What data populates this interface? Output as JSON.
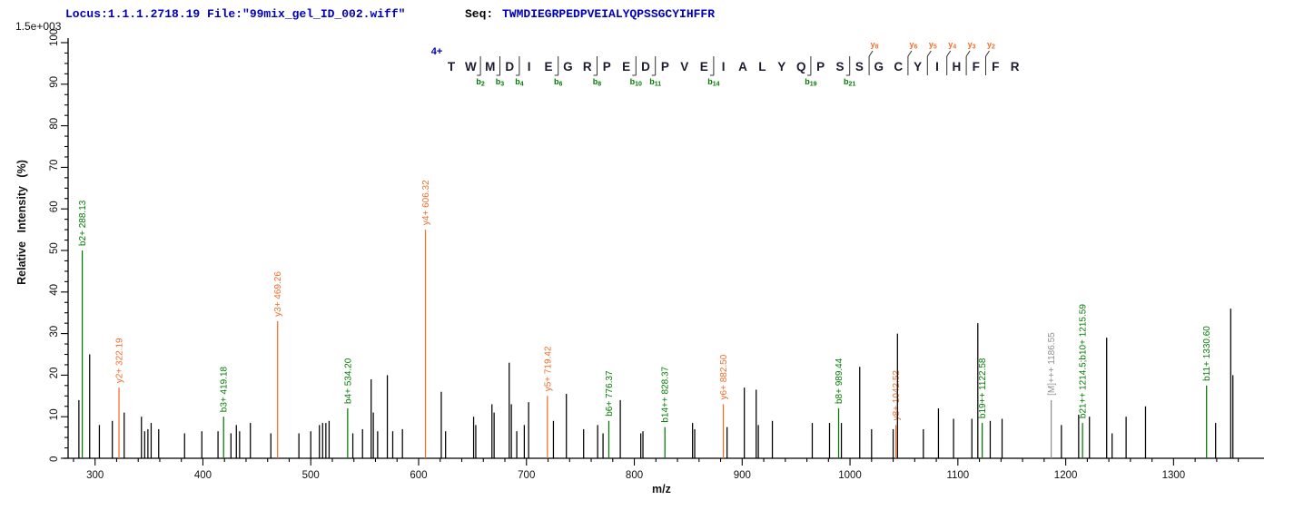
{
  "header": {
    "locus_file": "Locus:1.1.1.2718.19 File:\"99mix_gel_ID_002.wiff\"",
    "seq_label": "Seq:",
    "sequence": "TWMDIEGRPEDPVEIALYQPSSGCYIHFFR"
  },
  "scale_note": "1.5e+003",
  "annotation": {
    "charge": "4+",
    "residues": "TWMDIEGRPEDPVEIALYQPSSGCYIHFFR",
    "b_ions": [
      2,
      3,
      4,
      6,
      8,
      10,
      11,
      14,
      19,
      21
    ],
    "y_ions": [
      8,
      6,
      5,
      4,
      3,
      2
    ]
  },
  "colors": {
    "b_ion": "#007a00",
    "y_ion": "#f26c2a",
    "precursor": "#8f8f8f",
    "peak": "#000000",
    "axis": "#000000",
    "header_blue": "#0000bb",
    "residue_text": "#1c1c30"
  },
  "chart_data": {
    "type": "bar",
    "title": "MS/MS fragment ion spectrum",
    "xlabel": "m/z",
    "ylabel": "Relative Intensity (%)",
    "xlim": [
      275,
      1378
    ],
    "ylim": [
      0,
      100
    ],
    "x_major_tick_step": 100,
    "x_minor_tick_step": 20,
    "x_first_major": 300,
    "x_last_major": 1300,
    "y_major_tick_step": 10,
    "y_minor_tick_step": 2.5,
    "grid": "off",
    "legend": "none",
    "peaks": [
      {
        "mz": 285,
        "pct": 14
      },
      {
        "mz": 288.13,
        "pct": 50,
        "ion": "b",
        "label": "b2+ 288.13"
      },
      {
        "mz": 295,
        "pct": 25
      },
      {
        "mz": 304,
        "pct": 8
      },
      {
        "mz": 316,
        "pct": 9
      },
      {
        "mz": 322.19,
        "pct": 17,
        "ion": "y",
        "label": "y2+ 322.19"
      },
      {
        "mz": 327,
        "pct": 11
      },
      {
        "mz": 343,
        "pct": 10
      },
      {
        "mz": 346,
        "pct": 6.5
      },
      {
        "mz": 349,
        "pct": 7
      },
      {
        "mz": 352,
        "pct": 8.5
      },
      {
        "mz": 359,
        "pct": 7
      },
      {
        "mz": 383,
        "pct": 6
      },
      {
        "mz": 399,
        "pct": 6.5
      },
      {
        "mz": 414,
        "pct": 6.5
      },
      {
        "mz": 419.18,
        "pct": 10,
        "ion": "b",
        "label": "b3+ 419.18"
      },
      {
        "mz": 426,
        "pct": 6
      },
      {
        "mz": 431,
        "pct": 8
      },
      {
        "mz": 434,
        "pct": 6.5
      },
      {
        "mz": 444,
        "pct": 8.5
      },
      {
        "mz": 463,
        "pct": 6
      },
      {
        "mz": 469.26,
        "pct": 33,
        "ion": "y",
        "label": "y3+ 469.26"
      },
      {
        "mz": 489,
        "pct": 6
      },
      {
        "mz": 500,
        "pct": 6.5
      },
      {
        "mz": 508,
        "pct": 8
      },
      {
        "mz": 511,
        "pct": 8.5
      },
      {
        "mz": 514,
        "pct": 8.5
      },
      {
        "mz": 517,
        "pct": 9
      },
      {
        "mz": 534.2,
        "pct": 12,
        "ion": "b",
        "label": "b4+ 534.20"
      },
      {
        "mz": 539,
        "pct": 6
      },
      {
        "mz": 548,
        "pct": 7
      },
      {
        "mz": 556,
        "pct": 19
      },
      {
        "mz": 558,
        "pct": 11
      },
      {
        "mz": 562,
        "pct": 6.5
      },
      {
        "mz": 571,
        "pct": 20
      },
      {
        "mz": 576,
        "pct": 6.5
      },
      {
        "mz": 585,
        "pct": 7
      },
      {
        "mz": 606.32,
        "pct": 55,
        "ion": "y",
        "label": "y4+ 606.32"
      },
      {
        "mz": 621,
        "pct": 16
      },
      {
        "mz": 625,
        "pct": 6.5
      },
      {
        "mz": 651,
        "pct": 10
      },
      {
        "mz": 653,
        "pct": 8
      },
      {
        "mz": 668,
        "pct": 13
      },
      {
        "mz": 670,
        "pct": 11
      },
      {
        "mz": 684,
        "pct": 23
      },
      {
        "mz": 686,
        "pct": 13
      },
      {
        "mz": 691,
        "pct": 6.5
      },
      {
        "mz": 698,
        "pct": 8
      },
      {
        "mz": 702,
        "pct": 13.5
      },
      {
        "mz": 719.42,
        "pct": 15,
        "ion": "y",
        "label": "y5+ 719.42"
      },
      {
        "mz": 725,
        "pct": 9
      },
      {
        "mz": 737,
        "pct": 15.5
      },
      {
        "mz": 753,
        "pct": 7
      },
      {
        "mz": 766,
        "pct": 8
      },
      {
        "mz": 771,
        "pct": 6
      },
      {
        "mz": 776.37,
        "pct": 9,
        "ion": "b",
        "label": "b6+ 776.37"
      },
      {
        "mz": 787,
        "pct": 14
      },
      {
        "mz": 806,
        "pct": 6
      },
      {
        "mz": 808,
        "pct": 6.5
      },
      {
        "mz": 828.37,
        "pct": 7.5,
        "ion": "b",
        "label": "b14++ 828.37"
      },
      {
        "mz": 854,
        "pct": 8.5
      },
      {
        "mz": 856,
        "pct": 7
      },
      {
        "mz": 882.5,
        "pct": 13,
        "ion": "y",
        "label": "y6+ 882.50"
      },
      {
        "mz": 886,
        "pct": 7.5
      },
      {
        "mz": 902,
        "pct": 17
      },
      {
        "mz": 913,
        "pct": 16.5
      },
      {
        "mz": 915,
        "pct": 8
      },
      {
        "mz": 928,
        "pct": 9
      },
      {
        "mz": 965,
        "pct": 8.5
      },
      {
        "mz": 981,
        "pct": 8.5
      },
      {
        "mz": 989.44,
        "pct": 12,
        "ion": "b",
        "label": "b8+ 989.44"
      },
      {
        "mz": 992,
        "pct": 8.5
      },
      {
        "mz": 1009,
        "pct": 22
      },
      {
        "mz": 1020,
        "pct": 7
      },
      {
        "mz": 1040,
        "pct": 7
      },
      {
        "mz": 1042.52,
        "pct": 8,
        "ion": "y",
        "label": "y8+ 1042.52"
      },
      {
        "mz": 1044,
        "pct": 30
      },
      {
        "mz": 1068,
        "pct": 7
      },
      {
        "mz": 1082,
        "pct": 12
      },
      {
        "mz": 1096,
        "pct": 9.5
      },
      {
        "mz": 1113,
        "pct": 9.5
      },
      {
        "mz": 1118.5,
        "pct": 32.5
      },
      {
        "mz": 1122.58,
        "pct": 8.5,
        "ion": "b",
        "label": "b19++ 1122.58"
      },
      {
        "mz": 1130,
        "pct": 9
      },
      {
        "mz": 1141,
        "pct": 9.5
      },
      {
        "mz": 1186.55,
        "pct": 14,
        "ion": "M",
        "label": "[M]+++ 1186.55"
      },
      {
        "mz": 1196,
        "pct": 8
      },
      {
        "mz": 1212,
        "pct": 10.5
      },
      {
        "mz": 1215.59,
        "pct": 8.5,
        "ion": "b",
        "label": "b21++ 1214.5;b10+ 1215.59"
      },
      {
        "mz": 1222,
        "pct": 10
      },
      {
        "mz": 1238,
        "pct": 29
      },
      {
        "mz": 1243,
        "pct": 6
      },
      {
        "mz": 1256,
        "pct": 10
      },
      {
        "mz": 1274,
        "pct": 12.5
      },
      {
        "mz": 1330.6,
        "pct": 17.5,
        "ion": "b",
        "label": "b11+ 1330.60"
      },
      {
        "mz": 1339,
        "pct": 8.5
      },
      {
        "mz": 1353,
        "pct": 36
      },
      {
        "mz": 1355,
        "pct": 20
      }
    ]
  }
}
